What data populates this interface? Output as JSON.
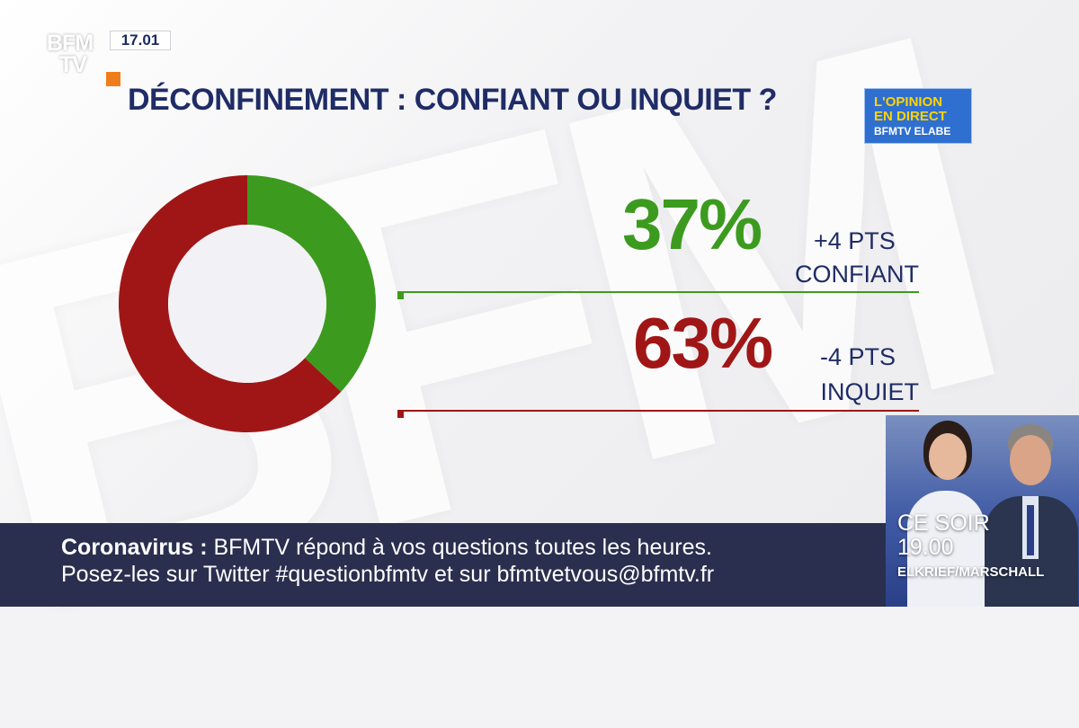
{
  "channel": {
    "logo_line1": "BFM",
    "logo_line2": "TV",
    "clock": "17.01",
    "accent_color": "#f07d1b"
  },
  "header": {
    "title": "DÉCONFINEMENT : CONFIANT OU INQUIET ?"
  },
  "badge": {
    "line1": "L'OPINION",
    "line2": "EN DIRECT",
    "line3": "BFMTV ELABE"
  },
  "chart_data": {
    "type": "pie",
    "title": "DÉCONFINEMENT : CONFIANT OU INQUIET ?",
    "donut": true,
    "slices": [
      {
        "label": "CONFIANT",
        "value": 37,
        "display": "37%",
        "change": "+4 PTS",
        "color": "#3c9b1f"
      },
      {
        "label": "INQUIET",
        "value": 63,
        "display": "63%",
        "change": "-4 PTS",
        "color": "#a01616"
      }
    ]
  },
  "ticker": {
    "line1_bold": "Coronavirus :",
    "line1_rest": " BFMTV répond à vos questions toutes les heures.",
    "line2": "Posez-les sur Twitter #questionbfmtv et sur bfmtvetvous@bfmtv.fr"
  },
  "promo": {
    "line1": "CE SOIR",
    "line2": "19.00",
    "line3": "ELKRIEF/MARSCHALL"
  }
}
